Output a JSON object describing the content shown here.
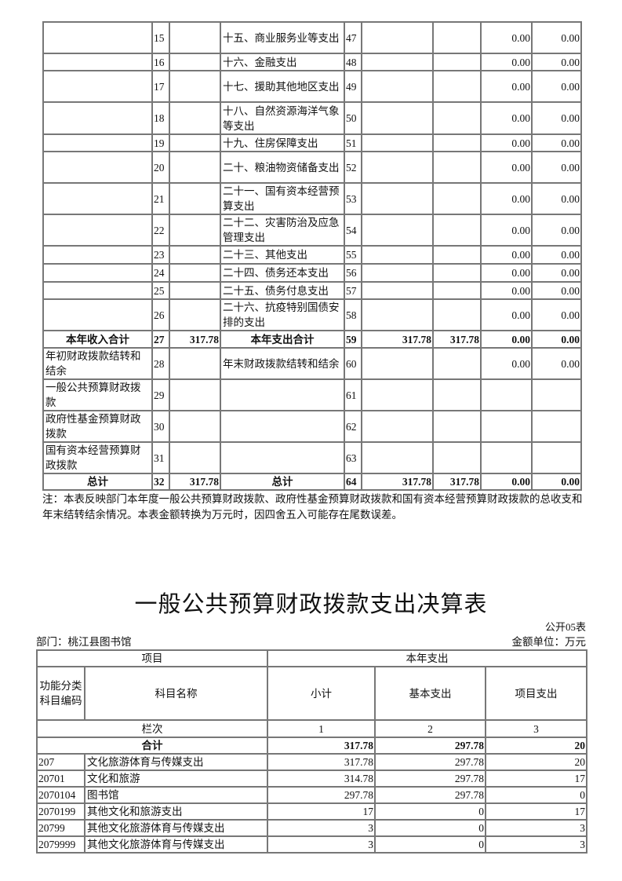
{
  "table1": {
    "rows": [
      {
        "a": "",
        "n1": "15",
        "v1": "",
        "b": "十五、商业服务业等支出",
        "n2": "47",
        "c6": "",
        "c7": "",
        "c8": "0.00",
        "c9": "0.00",
        "h": 40
      },
      {
        "a": "",
        "n1": "16",
        "v1": "",
        "b": "十六、金融支出",
        "n2": "48",
        "c6": "",
        "c7": "",
        "c8": "0.00",
        "c9": "0.00",
        "h": 22
      },
      {
        "a": "",
        "n1": "17",
        "v1": "",
        "b": "十七、援助其他地区支出",
        "n2": "49",
        "c6": "",
        "c7": "",
        "c8": "0.00",
        "c9": "0.00",
        "h": 40
      },
      {
        "a": "",
        "n1": "18",
        "v1": "",
        "b": "十八、自然资源海洋气象等支出",
        "n2": "50",
        "c6": "",
        "c7": "",
        "c8": "0.00",
        "c9": "0.00",
        "h": 41
      },
      {
        "a": "",
        "n1": "19",
        "v1": "",
        "b": "十九、住房保障支出",
        "n2": "51",
        "c6": "",
        "c7": "",
        "c8": "0.00",
        "c9": "0.00",
        "h": 22
      },
      {
        "a": "",
        "n1": "20",
        "v1": "",
        "b": "二十、粮油物资储备支出",
        "n2": "52",
        "c6": "",
        "c7": "",
        "c8": "0.00",
        "c9": "0.00",
        "h": 40
      },
      {
        "a": "",
        "n1": "21",
        "v1": "",
        "b": "二十一、国有资本经营预算支出",
        "n2": "53",
        "c6": "",
        "c7": "",
        "c8": "0.00",
        "c9": "0.00",
        "h": 40
      },
      {
        "a": "",
        "n1": "22",
        "v1": "",
        "b": "二十二、灾害防治及应急管理支出",
        "n2": "54",
        "c6": "",
        "c7": "",
        "c8": "0.00",
        "c9": "0.00",
        "h": 40
      },
      {
        "a": "",
        "n1": "23",
        "v1": "",
        "b": "二十三、其他支出",
        "n2": "55",
        "c6": "",
        "c7": "",
        "c8": "0.00",
        "c9": "0.00",
        "h": 23
      },
      {
        "a": "",
        "n1": "24",
        "v1": "",
        "b": "二十四、债务还本支出",
        "n2": "56",
        "c6": "",
        "c7": "",
        "c8": "0.00",
        "c9": "0.00",
        "h": 23
      },
      {
        "a": "",
        "n1": "25",
        "v1": "",
        "b": "二十五、债务付息支出",
        "n2": "57",
        "c6": "",
        "c7": "",
        "c8": "0.00",
        "c9": "0.00",
        "h": 22
      },
      {
        "a": "",
        "n1": "26",
        "v1": "",
        "b": "二十六、抗疫特别国债安排的支出",
        "n2": "58",
        "c6": "",
        "c7": "",
        "c8": "0.00",
        "c9": "0.00",
        "h": 40
      },
      {
        "a": "本年收入合计",
        "n1": "27",
        "v1": "317.78",
        "b": "本年支出合计",
        "n2": "59",
        "c6": "317.78",
        "c7": "317.78",
        "c8": "0.00",
        "c9": "0.00",
        "h": 22,
        "bold": true
      },
      {
        "a": "年初财政拨款结转和结余",
        "n1": "28",
        "v1": "",
        "b": "年末财政拨款结转和结余",
        "n2": "60",
        "c6": "",
        "c7": "",
        "c8": "0.00",
        "c9": "0.00",
        "h": 40
      },
      {
        "a": "一般公共预算财政拨款",
        "n1": "29",
        "v1": "",
        "b": "",
        "n2": "61",
        "c6": "",
        "c7": "",
        "c8": "",
        "c9": "",
        "h": 40
      },
      {
        "a": "政府性基金预算财政拨款",
        "n1": "30",
        "v1": "",
        "b": "",
        "n2": "62",
        "c6": "",
        "c7": "",
        "c8": "",
        "c9": "",
        "h": 40
      },
      {
        "a": "国有资本经营预算财政拨款",
        "n1": "31",
        "v1": "",
        "b": "",
        "n2": "63",
        "c6": "",
        "c7": "",
        "c8": "",
        "c9": "",
        "h": 40
      },
      {
        "a": "总计",
        "n1": "32",
        "v1": "317.78",
        "b": "总计",
        "n2": "64",
        "c6": "317.78",
        "c7": "317.78",
        "c8": "0.00",
        "c9": "0.00",
        "h": 20,
        "bold": true
      }
    ],
    "note": "注：本表反映部门本年度一般公共预算财政拨款、政府性基金预算财政拨款和国有资本经营预算财政拨款的总收支和年末结转结余情况。本表金额转换为万元时，因四舍五入可能存在尾数误差。"
  },
  "table2": {
    "title": "一般公共预算财政拨款支出决算表",
    "form_no": "公开05表",
    "department": "部门：桃江县图书馆",
    "unit": "金额单位：万元",
    "header": {
      "project": "项目",
      "current_year": "本年支出",
      "code": "功能分类科目编码",
      "name": "科目名称",
      "subtotal": "小计",
      "basic": "基本支出",
      "project_exp": "项目支出",
      "column_no": "栏次",
      "col1": "1",
      "col2": "2",
      "col3": "3"
    },
    "total": {
      "label": "合计",
      "subtotal": "317.78",
      "basic": "297.78",
      "project": "20"
    },
    "rows": [
      {
        "code": "207",
        "name": "文化旅游体育与传媒支出",
        "subtotal": "317.78",
        "basic": "297.78",
        "project": "20"
      },
      {
        "code": "20701",
        "name": "文化和旅游",
        "subtotal": "314.78",
        "basic": "297.78",
        "project": "17"
      },
      {
        "code": "2070104",
        "name": "图书馆",
        "subtotal": "297.78",
        "basic": "297.78",
        "project": "0"
      },
      {
        "code": "2070199",
        "name": "其他文化和旅游支出",
        "subtotal": "17",
        "basic": "0",
        "project": "17"
      },
      {
        "code": "20799",
        "name": "其他文化旅游体育与传媒支出",
        "subtotal": "3",
        "basic": "0",
        "project": "3"
      },
      {
        "code": "2079999",
        "name": "其他文化旅游体育与传媒支出",
        "subtotal": "3",
        "basic": "0",
        "project": "3"
      }
    ]
  }
}
